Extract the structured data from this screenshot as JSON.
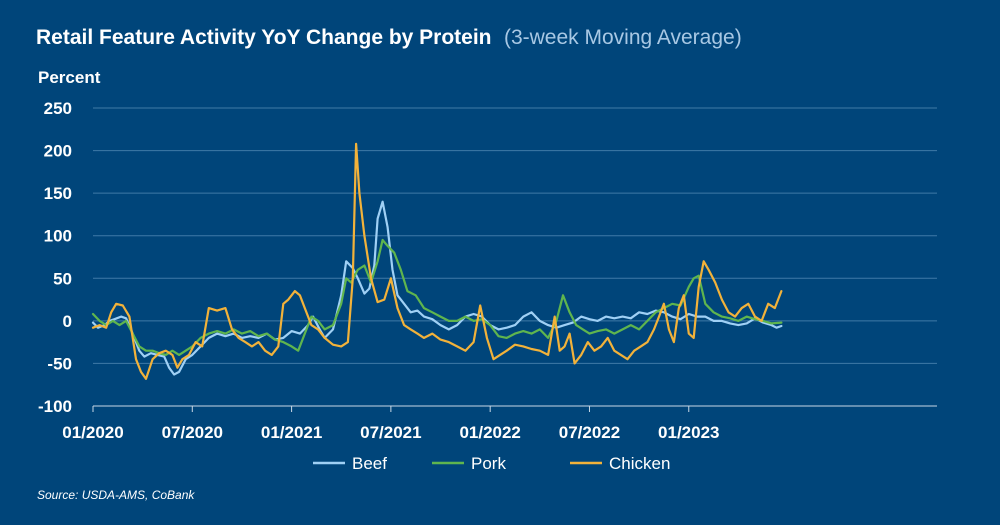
{
  "title": "Retail Feature Activity YoY Change by Protein",
  "subtitle": "(3-week Moving Average)",
  "source": "Source: USDA-AMS, CoBank",
  "chart_data": {
    "type": "line",
    "ylabel": "Percent",
    "ylim": [
      -100,
      250
    ],
    "yticks": [
      -100,
      -50,
      0,
      50,
      100,
      150,
      200,
      250
    ],
    "xlim": [
      0,
      51
    ],
    "xticks": [
      {
        "pos": 0,
        "label": "01/2020"
      },
      {
        "pos": 6,
        "label": "07/2020"
      },
      {
        "pos": 12,
        "label": "01/2021"
      },
      {
        "pos": 18,
        "label": "07/2021"
      },
      {
        "pos": 24,
        "label": "01/2022"
      },
      {
        "pos": 30,
        "label": "07/2022"
      },
      {
        "pos": 36,
        "label": "01/2023"
      }
    ],
    "grid": true,
    "legend_position": "bottom",
    "series": [
      {
        "name": "Beef",
        "color": "#9fd0f5",
        "points": [
          [
            0.0,
            -2
          ],
          [
            0.3,
            -8
          ],
          [
            0.7,
            -5
          ],
          [
            1.0,
            0
          ],
          [
            1.3,
            2
          ],
          [
            1.7,
            5
          ],
          [
            2.0,
            3
          ],
          [
            2.4,
            -15
          ],
          [
            2.8,
            -35
          ],
          [
            3.1,
            -42
          ],
          [
            3.5,
            -38
          ],
          [
            3.9,
            -40
          ],
          [
            4.3,
            -42
          ],
          [
            4.6,
            -55
          ],
          [
            4.9,
            -63
          ],
          [
            5.2,
            -60
          ],
          [
            5.6,
            -45
          ],
          [
            6.0,
            -40
          ],
          [
            6.5,
            -30
          ],
          [
            7.0,
            -20
          ],
          [
            7.5,
            -15
          ],
          [
            8.0,
            -18
          ],
          [
            8.5,
            -15
          ],
          [
            9.0,
            -20
          ],
          [
            9.5,
            -18
          ],
          [
            10.0,
            -20
          ],
          [
            10.5,
            -15
          ],
          [
            11.0,
            -22
          ],
          [
            11.5,
            -20
          ],
          [
            12.0,
            -12
          ],
          [
            12.5,
            -15
          ],
          [
            13.0,
            -5
          ],
          [
            13.3,
            5
          ],
          [
            13.7,
            -10
          ],
          [
            14.0,
            -20
          ],
          [
            14.5,
            -10
          ],
          [
            15.0,
            30
          ],
          [
            15.3,
            70
          ],
          [
            15.7,
            62
          ],
          [
            16.0,
            50
          ],
          [
            16.4,
            32
          ],
          [
            16.7,
            38
          ],
          [
            17.0,
            65
          ],
          [
            17.2,
            120
          ],
          [
            17.5,
            140
          ],
          [
            17.8,
            110
          ],
          [
            18.1,
            60
          ],
          [
            18.4,
            30
          ],
          [
            18.8,
            20
          ],
          [
            19.2,
            10
          ],
          [
            19.6,
            12
          ],
          [
            20.0,
            5
          ],
          [
            20.5,
            2
          ],
          [
            21.0,
            -5
          ],
          [
            21.5,
            -10
          ],
          [
            22.0,
            -5
          ],
          [
            22.5,
            5
          ],
          [
            23.0,
            8
          ],
          [
            23.5,
            5
          ],
          [
            24.0,
            -5
          ],
          [
            24.5,
            -10
          ],
          [
            25.0,
            -8
          ],
          [
            25.5,
            -5
          ],
          [
            26.0,
            5
          ],
          [
            26.5,
            10
          ],
          [
            27.0,
            0
          ],
          [
            27.5,
            -5
          ],
          [
            28.0,
            -8
          ],
          [
            28.5,
            -5
          ],
          [
            29.0,
            -2
          ],
          [
            29.5,
            5
          ],
          [
            30.0,
            2
          ],
          [
            30.5,
            0
          ],
          [
            31.0,
            5
          ],
          [
            31.5,
            3
          ],
          [
            32.0,
            5
          ],
          [
            32.5,
            3
          ],
          [
            33.0,
            10
          ],
          [
            33.5,
            8
          ],
          [
            34.0,
            12
          ],
          [
            34.5,
            10
          ],
          [
            35.0,
            5
          ],
          [
            35.5,
            2
          ],
          [
            36.0,
            8
          ],
          [
            36.5,
            5
          ],
          [
            37.0,
            5
          ],
          [
            37.5,
            0
          ],
          [
            38.0,
            0
          ],
          [
            38.5,
            -3
          ],
          [
            39.0,
            -5
          ],
          [
            39.5,
            -3
          ],
          [
            40.0,
            3
          ],
          [
            40.5,
            -2
          ],
          [
            41.0,
            -5
          ],
          [
            41.3,
            -8
          ],
          [
            41.6,
            -6
          ]
        ]
      },
      {
        "name": "Pork",
        "color": "#5fb54e",
        "points": [
          [
            0.0,
            8
          ],
          [
            0.4,
            0
          ],
          [
            0.8,
            -5
          ],
          [
            1.2,
            0
          ],
          [
            1.6,
            -5
          ],
          [
            2.0,
            0
          ],
          [
            2.4,
            -15
          ],
          [
            2.8,
            -30
          ],
          [
            3.2,
            -35
          ],
          [
            3.6,
            -35
          ],
          [
            4.0,
            -38
          ],
          [
            4.4,
            -40
          ],
          [
            4.8,
            -35
          ],
          [
            5.2,
            -40
          ],
          [
            5.6,
            -35
          ],
          [
            6.0,
            -30
          ],
          [
            6.5,
            -20
          ],
          [
            7.0,
            -15
          ],
          [
            7.5,
            -12
          ],
          [
            8.0,
            -15
          ],
          [
            8.5,
            -10
          ],
          [
            9.0,
            -15
          ],
          [
            9.5,
            -12
          ],
          [
            10.0,
            -18
          ],
          [
            10.5,
            -15
          ],
          [
            11.0,
            -22
          ],
          [
            11.5,
            -25
          ],
          [
            12.0,
            -30
          ],
          [
            12.4,
            -35
          ],
          [
            12.8,
            -15
          ],
          [
            13.2,
            5
          ],
          [
            13.6,
            0
          ],
          [
            14.0,
            -10
          ],
          [
            14.5,
            -5
          ],
          [
            15.0,
            20
          ],
          [
            15.3,
            50
          ],
          [
            15.6,
            45
          ],
          [
            16.0,
            60
          ],
          [
            16.4,
            65
          ],
          [
            16.8,
            45
          ],
          [
            17.2,
            70
          ],
          [
            17.5,
            95
          ],
          [
            17.8,
            88
          ],
          [
            18.2,
            80
          ],
          [
            18.6,
            60
          ],
          [
            19.0,
            35
          ],
          [
            19.5,
            30
          ],
          [
            20.0,
            15
          ],
          [
            20.5,
            10
          ],
          [
            21.0,
            5
          ],
          [
            21.5,
            0
          ],
          [
            22.0,
            0
          ],
          [
            22.5,
            5
          ],
          [
            23.0,
            0
          ],
          [
            23.5,
            2
          ],
          [
            24.0,
            -5
          ],
          [
            24.5,
            -18
          ],
          [
            25.0,
            -20
          ],
          [
            25.5,
            -15
          ],
          [
            26.0,
            -12
          ],
          [
            26.5,
            -15
          ],
          [
            27.0,
            -10
          ],
          [
            27.5,
            -20
          ],
          [
            28.0,
            0
          ],
          [
            28.4,
            30
          ],
          [
            28.8,
            10
          ],
          [
            29.2,
            -5
          ],
          [
            29.6,
            -10
          ],
          [
            30.0,
            -15
          ],
          [
            30.5,
            -12
          ],
          [
            31.0,
            -10
          ],
          [
            31.5,
            -15
          ],
          [
            32.0,
            -10
          ],
          [
            32.5,
            -5
          ],
          [
            33.0,
            -10
          ],
          [
            33.5,
            0
          ],
          [
            34.0,
            10
          ],
          [
            34.5,
            15
          ],
          [
            35.0,
            20
          ],
          [
            35.5,
            18
          ],
          [
            36.0,
            40
          ],
          [
            36.3,
            50
          ],
          [
            36.6,
            53
          ],
          [
            37.0,
            20
          ],
          [
            37.5,
            10
          ],
          [
            38.0,
            5
          ],
          [
            38.5,
            3
          ],
          [
            39.0,
            0
          ],
          [
            39.5,
            5
          ],
          [
            40.0,
            2
          ],
          [
            40.5,
            0
          ],
          [
            41.0,
            -3
          ],
          [
            41.6,
            -2
          ]
        ]
      },
      {
        "name": "Chicken",
        "color": "#f2b23a",
        "points": [
          [
            0.0,
            -8
          ],
          [
            0.4,
            -5
          ],
          [
            0.8,
            -8
          ],
          [
            1.1,
            10
          ],
          [
            1.4,
            20
          ],
          [
            1.8,
            18
          ],
          [
            2.2,
            5
          ],
          [
            2.6,
            -45
          ],
          [
            2.9,
            -60
          ],
          [
            3.2,
            -68
          ],
          [
            3.6,
            -45
          ],
          [
            4.0,
            -38
          ],
          [
            4.4,
            -35
          ],
          [
            4.8,
            -40
          ],
          [
            5.1,
            -55
          ],
          [
            5.4,
            -45
          ],
          [
            5.8,
            -40
          ],
          [
            6.2,
            -25
          ],
          [
            6.6,
            -30
          ],
          [
            7.0,
            15
          ],
          [
            7.5,
            12
          ],
          [
            8.0,
            15
          ],
          [
            8.4,
            -10
          ],
          [
            8.8,
            -20
          ],
          [
            9.2,
            -25
          ],
          [
            9.6,
            -30
          ],
          [
            10.0,
            -25
          ],
          [
            10.4,
            -35
          ],
          [
            10.8,
            -40
          ],
          [
            11.2,
            -30
          ],
          [
            11.5,
            20
          ],
          [
            11.8,
            25
          ],
          [
            12.2,
            35
          ],
          [
            12.5,
            30
          ],
          [
            12.8,
            15
          ],
          [
            13.2,
            -5
          ],
          [
            13.6,
            -10
          ],
          [
            14.0,
            -20
          ],
          [
            14.5,
            -28
          ],
          [
            15.0,
            -30
          ],
          [
            15.4,
            -25
          ],
          [
            15.7,
            50
          ],
          [
            15.9,
            208
          ],
          [
            16.1,
            150
          ],
          [
            16.4,
            100
          ],
          [
            16.8,
            50
          ],
          [
            17.2,
            22
          ],
          [
            17.6,
            25
          ],
          [
            18.0,
            50
          ],
          [
            18.4,
            15
          ],
          [
            18.8,
            -5
          ],
          [
            19.2,
            -10
          ],
          [
            19.6,
            -15
          ],
          [
            20.0,
            -20
          ],
          [
            20.5,
            -15
          ],
          [
            21.0,
            -22
          ],
          [
            21.5,
            -25
          ],
          [
            22.0,
            -30
          ],
          [
            22.5,
            -35
          ],
          [
            23.0,
            -25
          ],
          [
            23.4,
            18
          ],
          [
            23.8,
            -20
          ],
          [
            24.2,
            -45
          ],
          [
            24.6,
            -40
          ],
          [
            25.0,
            -35
          ],
          [
            25.5,
            -28
          ],
          [
            26.0,
            -30
          ],
          [
            26.5,
            -33
          ],
          [
            27.0,
            -35
          ],
          [
            27.5,
            -40
          ],
          [
            27.9,
            5
          ],
          [
            28.2,
            -35
          ],
          [
            28.5,
            -30
          ],
          [
            28.8,
            -15
          ],
          [
            29.1,
            -50
          ],
          [
            29.5,
            -40
          ],
          [
            29.9,
            -25
          ],
          [
            30.3,
            -35
          ],
          [
            30.7,
            -30
          ],
          [
            31.1,
            -20
          ],
          [
            31.5,
            -35
          ],
          [
            31.9,
            -40
          ],
          [
            32.3,
            -45
          ],
          [
            32.7,
            -35
          ],
          [
            33.1,
            -30
          ],
          [
            33.5,
            -25
          ],
          [
            33.9,
            -10
          ],
          [
            34.2,
            5
          ],
          [
            34.5,
            20
          ],
          [
            34.8,
            -10
          ],
          [
            35.1,
            -25
          ],
          [
            35.4,
            15
          ],
          [
            35.7,
            30
          ],
          [
            36.0,
            -15
          ],
          [
            36.3,
            -20
          ],
          [
            36.6,
            40
          ],
          [
            36.9,
            70
          ],
          [
            37.2,
            60
          ],
          [
            37.6,
            45
          ],
          [
            38.0,
            25
          ],
          [
            38.4,
            10
          ],
          [
            38.8,
            5
          ],
          [
            39.2,
            15
          ],
          [
            39.6,
            20
          ],
          [
            40.0,
            5
          ],
          [
            40.4,
            0
          ],
          [
            40.8,
            20
          ],
          [
            41.2,
            15
          ],
          [
            41.6,
            35
          ]
        ]
      }
    ]
  }
}
